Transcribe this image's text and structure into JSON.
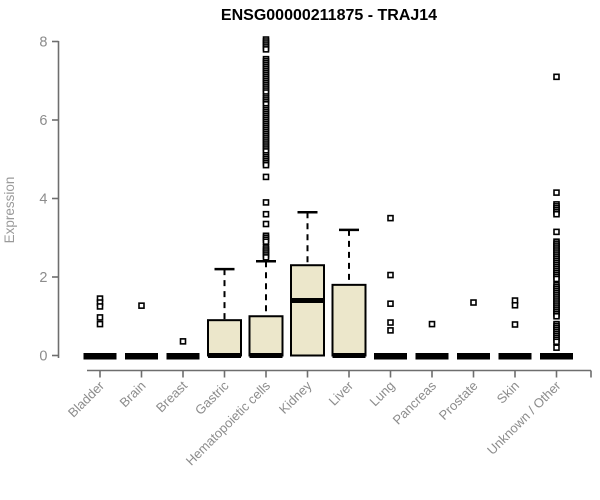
{
  "chart_data": {
    "type": "boxplot",
    "title": "ENSG00000211875 - TRAJ14",
    "ylabel": "Expression",
    "xlabel": "",
    "ylim": [
      0,
      8
    ],
    "yticks": [
      0,
      2,
      4,
      6,
      8
    ],
    "grid": false,
    "legend": "none",
    "colors": {
      "box_fill": "#ECE7CB",
      "box_stroke": "#000000",
      "median": "#000000",
      "whisker": "#000000",
      "outlier_stroke": "#000000",
      "outlier_fill": "#ffffff",
      "axis_line": "#6e6e6e",
      "tick_label": "#8c8c8c",
      "title": "#000000"
    },
    "categories": [
      "Bladder",
      "Brain",
      "Breast",
      "Gastric",
      "Hematopoietic cells",
      "Kidney",
      "Liver",
      "Lung",
      "Pancreas",
      "Prostate",
      "Skin",
      "Unknown / Other"
    ],
    "boxes": [
      {
        "category": "Bladder",
        "q1": 0,
        "median": 0,
        "q3": 0,
        "whisker_low": 0,
        "whisker_high": 0,
        "outliers": [
          1.45,
          1.35,
          1.25,
          0.97,
          0.8
        ]
      },
      {
        "category": "Brain",
        "q1": 0,
        "median": 0,
        "q3": 0,
        "whisker_low": 0,
        "whisker_high": 0,
        "outliers": [
          1.27
        ]
      },
      {
        "category": "Breast",
        "q1": 0,
        "median": 0,
        "q3": 0,
        "whisker_low": 0,
        "whisker_high": 0,
        "outliers": [
          0.36
        ]
      },
      {
        "category": "Gastric",
        "q1": 0,
        "median": 0,
        "q3": 0.9,
        "whisker_low": 0,
        "whisker_high": 2.2,
        "outliers": []
      },
      {
        "category": "Hematopoietic cells",
        "q1": 0,
        "median": 0,
        "q3": 1.0,
        "whisker_low": 0,
        "whisker_high": 2.4,
        "outliers": [
          8.05,
          8.0,
          7.95,
          7.9,
          7.85,
          7.8,
          7.55,
          7.5,
          7.45,
          7.4,
          7.35,
          7.3,
          7.25,
          7.2,
          7.15,
          7.1,
          7.05,
          7.0,
          6.95,
          6.9,
          6.85,
          6.8,
          6.75,
          6.7,
          6.6,
          6.55,
          6.5,
          6.45,
          6.4,
          6.3,
          6.25,
          6.2,
          6.15,
          6.1,
          6.05,
          6.0,
          5.95,
          5.9,
          5.85,
          5.8,
          5.75,
          5.7,
          5.65,
          5.6,
          5.55,
          5.5,
          5.45,
          5.4,
          5.35,
          5.3,
          5.25,
          5.2,
          5.1,
          5.05,
          5.0,
          4.95,
          4.9,
          4.85,
          4.55,
          3.9,
          3.6,
          3.35,
          3.05,
          3.0,
          2.95,
          2.9,
          2.75,
          2.7,
          2.65,
          2.6,
          2.55,
          2.5
        ]
      },
      {
        "category": "Kidney",
        "q1": 0,
        "median": 1.4,
        "q3": 2.3,
        "whisker_low": 0,
        "whisker_high": 3.65,
        "outliers": []
      },
      {
        "category": "Liver",
        "q1": 0,
        "median": 0,
        "q3": 1.8,
        "whisker_low": 0,
        "whisker_high": 3.2,
        "outliers": []
      },
      {
        "category": "Lung",
        "q1": 0,
        "median": 0,
        "q3": 0,
        "whisker_low": 0,
        "whisker_high": 0,
        "outliers": [
          3.5,
          2.05,
          1.32,
          0.84,
          0.64
        ]
      },
      {
        "category": "Pancreas",
        "q1": 0,
        "median": 0,
        "q3": 0,
        "whisker_low": 0,
        "whisker_high": 0,
        "outliers": [
          0.8
        ]
      },
      {
        "category": "Prostate",
        "q1": 0,
        "median": 0,
        "q3": 0,
        "whisker_low": 0,
        "whisker_high": 0,
        "outliers": [
          1.35
        ]
      },
      {
        "category": "Skin",
        "q1": 0,
        "median": 0,
        "q3": 0,
        "whisker_low": 0,
        "whisker_high": 0,
        "outliers": [
          1.4,
          1.28,
          0.79
        ]
      },
      {
        "category": "Unknown / Other",
        "q1": 0,
        "median": 0,
        "q3": 0,
        "whisker_low": 0,
        "whisker_high": 0,
        "outliers": [
          7.1,
          4.15,
          3.85,
          3.8,
          3.75,
          3.7,
          3.65,
          3.6,
          3.15,
          2.9,
          2.85,
          2.8,
          2.75,
          2.7,
          2.65,
          2.6,
          2.55,
          2.5,
          2.45,
          2.4,
          2.35,
          2.3,
          2.25,
          2.2,
          2.15,
          2.1,
          2.05,
          2.0,
          1.95,
          1.8,
          1.75,
          1.7,
          1.65,
          1.6,
          1.55,
          1.5,
          1.45,
          1.4,
          1.35,
          1.3,
          1.25,
          1.2,
          1.15,
          1.1,
          1.05,
          1.0,
          0.8,
          0.75,
          0.7,
          0.65,
          0.6,
          0.55,
          0.5,
          0.45,
          0.4,
          0.35,
          0.2
        ]
      }
    ]
  }
}
